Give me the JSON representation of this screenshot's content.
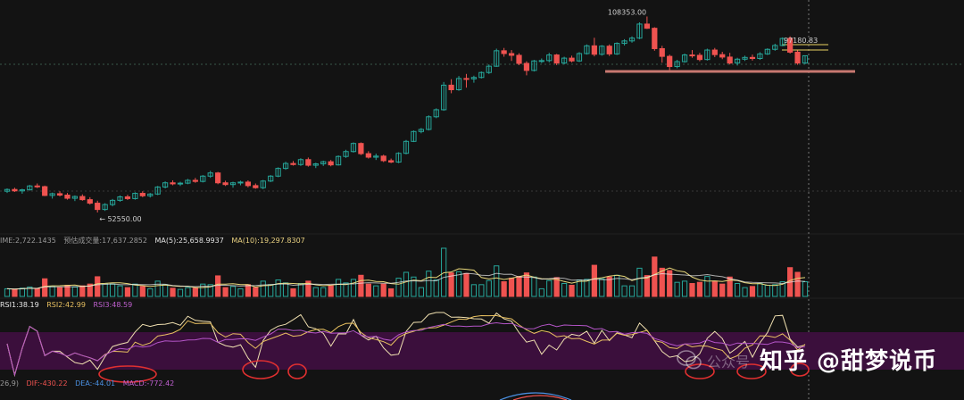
{
  "chart_data": {
    "type": "candlestick",
    "annotations": {
      "high_label": "108353.00",
      "low_label": "← 52550.00",
      "price_label": "97180.83"
    },
    "candles": [
      [
        58600,
        59400,
        58100,
        59100
      ],
      [
        59100,
        59600,
        58400,
        58700
      ],
      [
        58700,
        59300,
        57900,
        59000
      ],
      [
        59000,
        60400,
        58800,
        60100
      ],
      [
        60100,
        60800,
        59500,
        59900
      ],
      [
        59900,
        60200,
        57200,
        57400
      ],
      [
        57400,
        58200,
        56500,
        57900
      ],
      [
        57900,
        58600,
        57100,
        57500
      ],
      [
        57500,
        58100,
        56200,
        56600
      ],
      [
        56600,
        57400,
        55800,
        57100
      ],
      [
        57100,
        57700,
        55900,
        56200
      ],
      [
        56200,
        56900,
        54800,
        55200
      ],
      [
        55200,
        55900,
        52550,
        53400
      ],
      [
        53400,
        55200,
        53000,
        54800
      ],
      [
        54800,
        56400,
        54300,
        56000
      ],
      [
        56000,
        57400,
        55600,
        57000
      ],
      [
        57000,
        57600,
        56100,
        56500
      ],
      [
        56500,
        58300,
        56200,
        58000
      ],
      [
        58000,
        58600,
        56900,
        57300
      ],
      [
        57300,
        58100,
        56800,
        57800
      ],
      [
        57800,
        60100,
        57500,
        59800
      ],
      [
        59800,
        61400,
        59400,
        61000
      ],
      [
        61000,
        61700,
        60300,
        60700
      ],
      [
        60700,
        61300,
        60100,
        60900
      ],
      [
        60900,
        62100,
        60600,
        61700
      ],
      [
        61700,
        62400,
        61000,
        61400
      ],
      [
        61400,
        63200,
        61100,
        62900
      ],
      [
        62900,
        64400,
        62400,
        63800
      ],
      [
        63800,
        64100,
        60600,
        61000
      ],
      [
        61000,
        61600,
        60100,
        60500
      ],
      [
        60500,
        61300,
        59600,
        61000
      ],
      [
        61000,
        61600,
        60300,
        61200
      ],
      [
        61200,
        61700,
        59700,
        60200
      ],
      [
        60200,
        60800,
        59300,
        59600
      ],
      [
        59600,
        61800,
        59200,
        61500
      ],
      [
        61500,
        63200,
        61200,
        62900
      ],
      [
        62900,
        65400,
        62600,
        65100
      ],
      [
        65100,
        67000,
        64700,
        66500
      ],
      [
        66500,
        67200,
        65900,
        66200
      ],
      [
        66200,
        68000,
        65800,
        67600
      ],
      [
        67600,
        68200,
        65600,
        66000
      ],
      [
        66000,
        66700,
        65200,
        66400
      ],
      [
        66400,
        67300,
        65800,
        67000
      ],
      [
        67000,
        67500,
        65700,
        66100
      ],
      [
        66100,
        68800,
        65900,
        68500
      ],
      [
        68500,
        70400,
        68100,
        69900
      ],
      [
        69900,
        72500,
        69600,
        72200
      ],
      [
        72200,
        72500,
        68900,
        69300
      ],
      [
        69300,
        70000,
        67900,
        68300
      ],
      [
        68300,
        69300,
        67500,
        68600
      ],
      [
        68600,
        69000,
        66900,
        67300
      ],
      [
        67300,
        67900,
        66600,
        66900
      ],
      [
        66900,
        69700,
        66600,
        69400
      ],
      [
        69400,
        73200,
        69100,
        72800
      ],
      [
        72800,
        75900,
        72600,
        75600
      ],
      [
        75600,
        76600,
        75100,
        76200
      ],
      [
        76200,
        80200,
        75900,
        79800
      ],
      [
        79800,
        82200,
        79400,
        81800
      ],
      [
        81800,
        89700,
        81500,
        88800
      ],
      [
        88800,
        90500,
        86500,
        87500
      ],
      [
        87500,
        91400,
        87200,
        90700
      ],
      [
        90700,
        92000,
        88100,
        90600
      ],
      [
        90600,
        91500,
        89500,
        91000
      ],
      [
        91000,
        92700,
        90700,
        92400
      ],
      [
        92400,
        94700,
        92000,
        94200
      ],
      [
        94200,
        99200,
        94000,
        98600
      ],
      [
        98600,
        99400,
        96900,
        97800
      ],
      [
        97800,
        98800,
        95700,
        97300
      ],
      [
        97300,
        97900,
        94500,
        95000
      ],
      [
        95000,
        95600,
        91600,
        93000
      ],
      [
        93000,
        96000,
        92700,
        95700
      ],
      [
        95700,
        96400,
        95100,
        95800
      ],
      [
        95800,
        98000,
        95300,
        97400
      ],
      [
        97400,
        97700,
        94500,
        95100
      ],
      [
        95100,
        96900,
        94700,
        96500
      ],
      [
        96500,
        97200,
        95300,
        95700
      ],
      [
        95700,
        98200,
        95400,
        97800
      ],
      [
        97800,
        100400,
        97500,
        100000
      ],
      [
        100000,
        102300,
        97000,
        97600
      ],
      [
        97600,
        100200,
        97200,
        99900
      ],
      [
        99900,
        100400,
        97100,
        97700
      ],
      [
        97700,
        101000,
        97400,
        100700
      ],
      [
        100700,
        101900,
        100100,
        101400
      ],
      [
        101400,
        102700,
        100900,
        102200
      ],
      [
        102200,
        106700,
        101900,
        106200
      ],
      [
        106200,
        108353,
        104800,
        105000
      ],
      [
        105000,
        105300,
        98600,
        99200
      ],
      [
        99200,
        100000,
        95200,
        97000
      ],
      [
        97000,
        97500,
        93100,
        94100
      ],
      [
        94100,
        96000,
        93600,
        95500
      ],
      [
        95500,
        97800,
        95200,
        97400
      ],
      [
        97400,
        98800,
        96600,
        97300
      ],
      [
        97300,
        98000,
        95600,
        96100
      ],
      [
        96100,
        99200,
        95800,
        98800
      ],
      [
        98800,
        99400,
        96800,
        97500
      ],
      [
        97500,
        98300,
        96200,
        96800
      ],
      [
        96800,
        98000,
        94700,
        95100
      ],
      [
        95100,
        96600,
        94400,
        96200
      ],
      [
        96200,
        97200,
        95700,
        96700
      ],
      [
        96700,
        97500,
        95800,
        96400
      ],
      [
        96400,
        98200,
        96000,
        97700
      ],
      [
        97700,
        99300,
        97400,
        99000
      ],
      [
        99000,
        100600,
        98600,
        100100
      ],
      [
        100100,
        102400,
        99900,
        102100
      ],
      [
        102100,
        102700,
        97800,
        98200
      ],
      [
        98200,
        98700,
        94600,
        95100
      ],
      [
        95100,
        97300,
        94800,
        97180.83
      ]
    ]
  },
  "legend": {
    "volume_value": "IME:2,722.1435",
    "volume_avg": "预估成交量:17,637.2852",
    "ma5": "MA(5):25,658.9937",
    "ma10": "MA(10):19,297.8307"
  },
  "rsi": {
    "rsi1": "RSI1:38.19",
    "rsi2": "RSI2:42.99",
    "rsi3": "RSI3:48.59"
  },
  "macd": {
    "params": "26,9)",
    "dif": "DIF:-430.22",
    "dea": "DEA:-44.01",
    "macd": "MACD:-772.42"
  },
  "watermark": {
    "text": "知乎 @甜梦说币",
    "sub": "公众号"
  },
  "colors": {
    "up": "#26a69a",
    "down": "#ef5350",
    "ma5": "#e8d87a",
    "ma10": "#e8c870",
    "rsi_band": "#3b0f3c",
    "rsi1": "#f0e0b0",
    "rsi2": "#e8c060",
    "rsi3": "#b455c8",
    "support": "#c87870",
    "circle": "#e03030"
  }
}
